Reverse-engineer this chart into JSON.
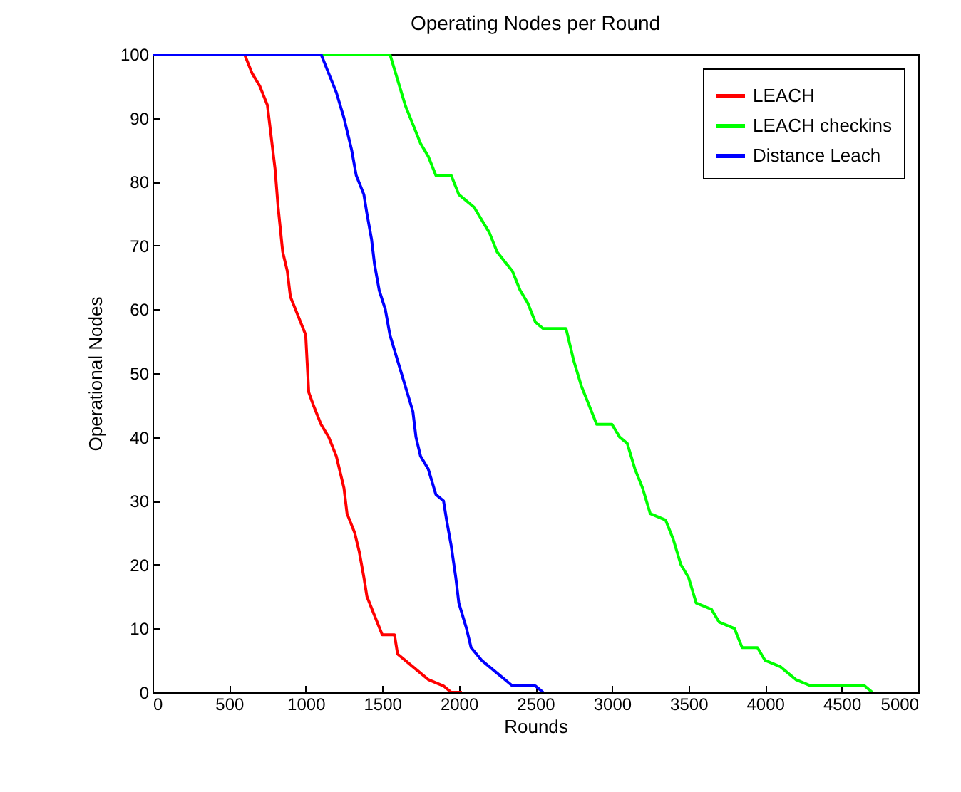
{
  "chart_data": {
    "type": "line",
    "title": "Operating Nodes per Round",
    "xlabel": "Rounds",
    "ylabel": "Operational Nodes",
    "xlim": [
      0,
      5000
    ],
    "xticks": [
      0,
      500,
      1000,
      1500,
      2000,
      2500,
      3000,
      3500,
      4000,
      4500,
      5000
    ],
    "ylim": [
      0,
      100
    ],
    "yticks": [
      0,
      10,
      20,
      30,
      40,
      50,
      60,
      70,
      80,
      90,
      100
    ],
    "legend": "top right",
    "grid": false,
    "series": [
      {
        "name": "LEACH",
        "color": "#ff0000",
        "x": [
          0,
          600,
          650,
          700,
          750,
          780,
          800,
          820,
          850,
          880,
          900,
          950,
          1000,
          1020,
          1050,
          1100,
          1150,
          1200,
          1250,
          1270,
          1320,
          1350,
          1380,
          1400,
          1450,
          1500,
          1580,
          1600,
          1700,
          1800,
          1900,
          1950,
          2020
        ],
        "values": [
          100,
          100,
          97,
          95,
          92,
          86,
          82,
          76,
          69,
          66,
          62,
          59,
          56,
          47,
          45,
          42,
          40,
          37,
          32,
          28,
          25,
          22,
          18,
          15,
          12,
          9,
          9,
          6,
          4,
          2,
          1,
          0,
          0
        ]
      },
      {
        "name": "LEACH checkins",
        "color": "#00ff00",
        "x": [
          0,
          1550,
          1600,
          1650,
          1700,
          1750,
          1800,
          1850,
          1950,
          2000,
          2100,
          2200,
          2250,
          2350,
          2400,
          2450,
          2500,
          2550,
          2700,
          2750,
          2800,
          2850,
          2900,
          3000,
          3050,
          3100,
          3150,
          3200,
          3250,
          3350,
          3400,
          3450,
          3500,
          3550,
          3650,
          3700,
          3800,
          3850,
          3950,
          4000,
          4100,
          4200,
          4300,
          4650,
          4700
        ],
        "values": [
          100,
          100,
          96,
          92,
          89,
          86,
          84,
          81,
          81,
          78,
          76,
          72,
          69,
          66,
          63,
          61,
          58,
          57,
          57,
          52,
          48,
          45,
          42,
          42,
          40,
          39,
          35,
          32,
          28,
          27,
          24,
          20,
          18,
          14,
          13,
          11,
          10,
          7,
          7,
          5,
          4,
          2,
          1,
          1,
          0
        ]
      },
      {
        "name": "Distance Leach",
        "color": "#0000ff",
        "x": [
          0,
          1100,
          1150,
          1200,
          1250,
          1300,
          1330,
          1380,
          1400,
          1430,
          1450,
          1480,
          1520,
          1550,
          1600,
          1650,
          1700,
          1720,
          1750,
          1800,
          1850,
          1900,
          1920,
          1950,
          1980,
          2000,
          2050,
          2080,
          2150,
          2250,
          2300,
          2350,
          2500,
          2550
        ],
        "values": [
          100,
          100,
          97,
          94,
          90,
          85,
          81,
          78,
          75,
          71,
          67,
          63,
          60,
          56,
          52,
          48,
          44,
          40,
          37,
          35,
          31,
          30,
          27,
          23,
          18,
          14,
          10,
          7,
          5,
          3,
          2,
          1,
          1,
          0
        ]
      }
    ]
  }
}
